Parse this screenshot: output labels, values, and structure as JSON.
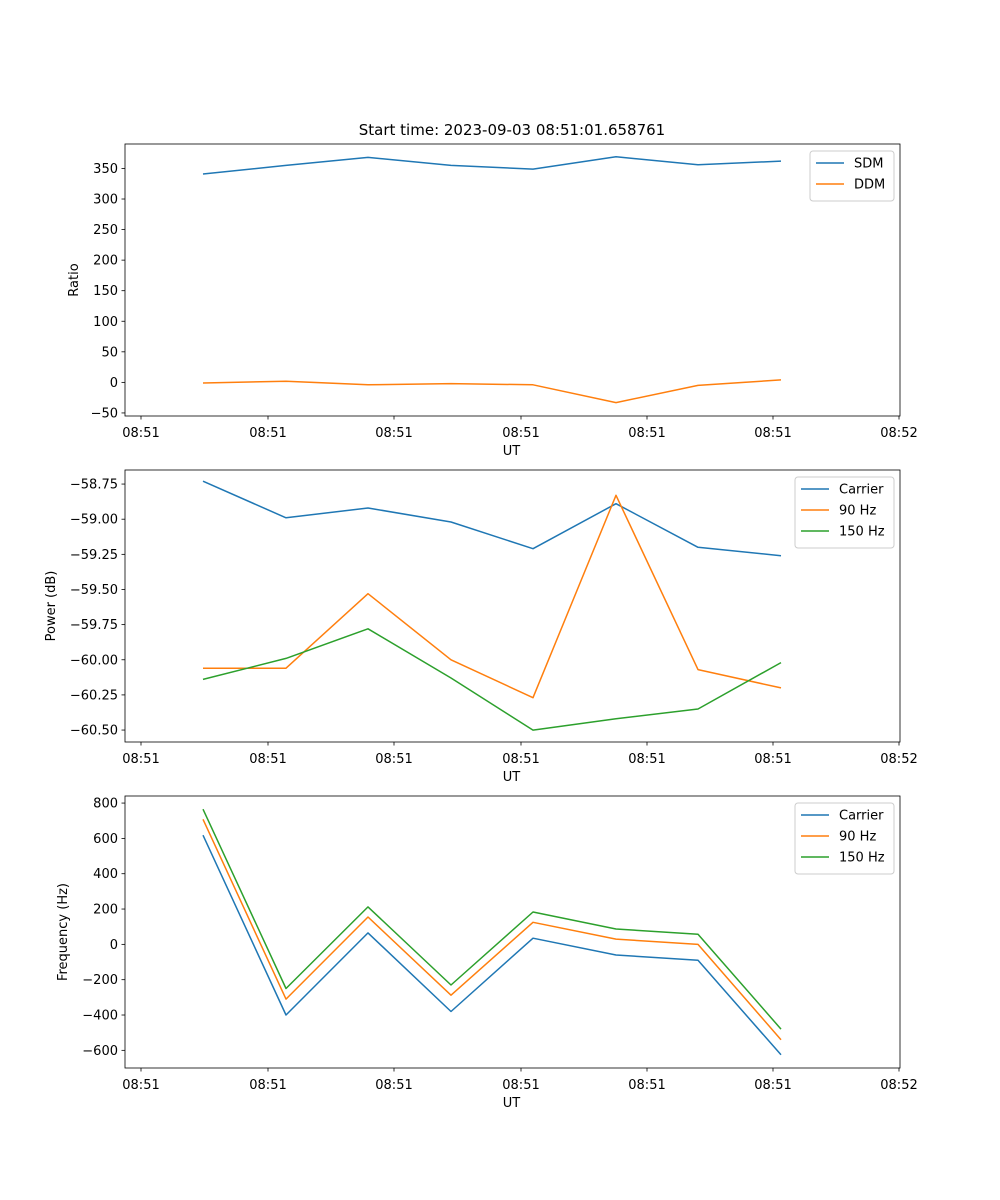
{
  "chart_data": [
    {
      "type": "line",
      "title": "Start time: 2023-09-03 08:51:01.658761",
      "xlabel": "UT",
      "ylabel": "Ratio",
      "x_tick_labels": [
        "08:51",
        "08:51",
        "08:51",
        "08:51",
        "08:51",
        "08:51",
        "08:52"
      ],
      "ylim": [
        -55,
        390
      ],
      "yticks": [
        -50,
        0,
        50,
        100,
        150,
        200,
        250,
        300,
        350
      ],
      "ytick_labels": [
        "−50",
        "0",
        "50",
        "100",
        "150",
        "200",
        "250",
        "300",
        "350"
      ],
      "legend_position": "top-right",
      "series": [
        {
          "name": "SDM",
          "color": "#1f77b4",
          "values": [
            341,
            355,
            368,
            355,
            349,
            369,
            356,
            362
          ]
        },
        {
          "name": "DDM",
          "color": "#ff7f0e",
          "values": [
            -1,
            2,
            -4,
            -2,
            -4,
            -33,
            -5,
            4
          ]
        }
      ]
    },
    {
      "type": "line",
      "title": "",
      "xlabel": "UT",
      "ylabel": "Power (dB)",
      "x_tick_labels": [
        "08:51",
        "08:51",
        "08:51",
        "08:51",
        "08:51",
        "08:51",
        "08:52"
      ],
      "ylim": [
        -60.585,
        -58.65
      ],
      "yticks": [
        -60.5,
        -60.25,
        -60.0,
        -59.75,
        -59.5,
        -59.25,
        -59.0,
        -58.75
      ],
      "ytick_labels": [
        "−60.50",
        "−60.25",
        "−60.00",
        "−59.75",
        "−59.50",
        "−59.25",
        "−59.00",
        "−58.75"
      ],
      "legend_position": "top-right",
      "series": [
        {
          "name": "Carrier",
          "color": "#1f77b4",
          "values": [
            -58.73,
            -58.99,
            -58.92,
            -59.02,
            -59.21,
            -58.89,
            -59.2,
            -59.26
          ]
        },
        {
          "name": "90 Hz",
          "color": "#ff7f0e",
          "values": [
            -60.06,
            -60.06,
            -59.53,
            -60.0,
            -60.27,
            -58.83,
            -60.07,
            -60.2
          ]
        },
        {
          "name": "150 Hz",
          "color": "#2ca02c",
          "values": [
            -60.14,
            -59.99,
            -59.78,
            -60.13,
            -60.5,
            -60.42,
            -60.35,
            -60.02
          ]
        }
      ]
    },
    {
      "type": "line",
      "title": "",
      "xlabel": "UT",
      "ylabel": "Frequency (Hz)",
      "x_tick_labels": [
        "08:51",
        "08:51",
        "08:51",
        "08:51",
        "08:51",
        "08:51",
        "08:52"
      ],
      "ylim": [
        -700,
        840
      ],
      "yticks": [
        -600,
        -400,
        -200,
        0,
        200,
        400,
        600,
        800
      ],
      "ytick_labels": [
        "−600",
        "−400",
        "−200",
        "0",
        "200",
        "400",
        "600",
        "800"
      ],
      "legend_position": "top-right",
      "series": [
        {
          "name": "Carrier",
          "color": "#1f77b4",
          "values": [
            618,
            -400,
            65,
            -380,
            35,
            -60,
            -90,
            -625
          ]
        },
        {
          "name": "90 Hz",
          "color": "#ff7f0e",
          "values": [
            708,
            -310,
            155,
            -288,
            125,
            30,
            0,
            -540
          ]
        },
        {
          "name": "150 Hz",
          "color": "#2ca02c",
          "values": [
            765,
            -250,
            212,
            -230,
            183,
            87,
            57,
            -480
          ]
        }
      ]
    }
  ]
}
